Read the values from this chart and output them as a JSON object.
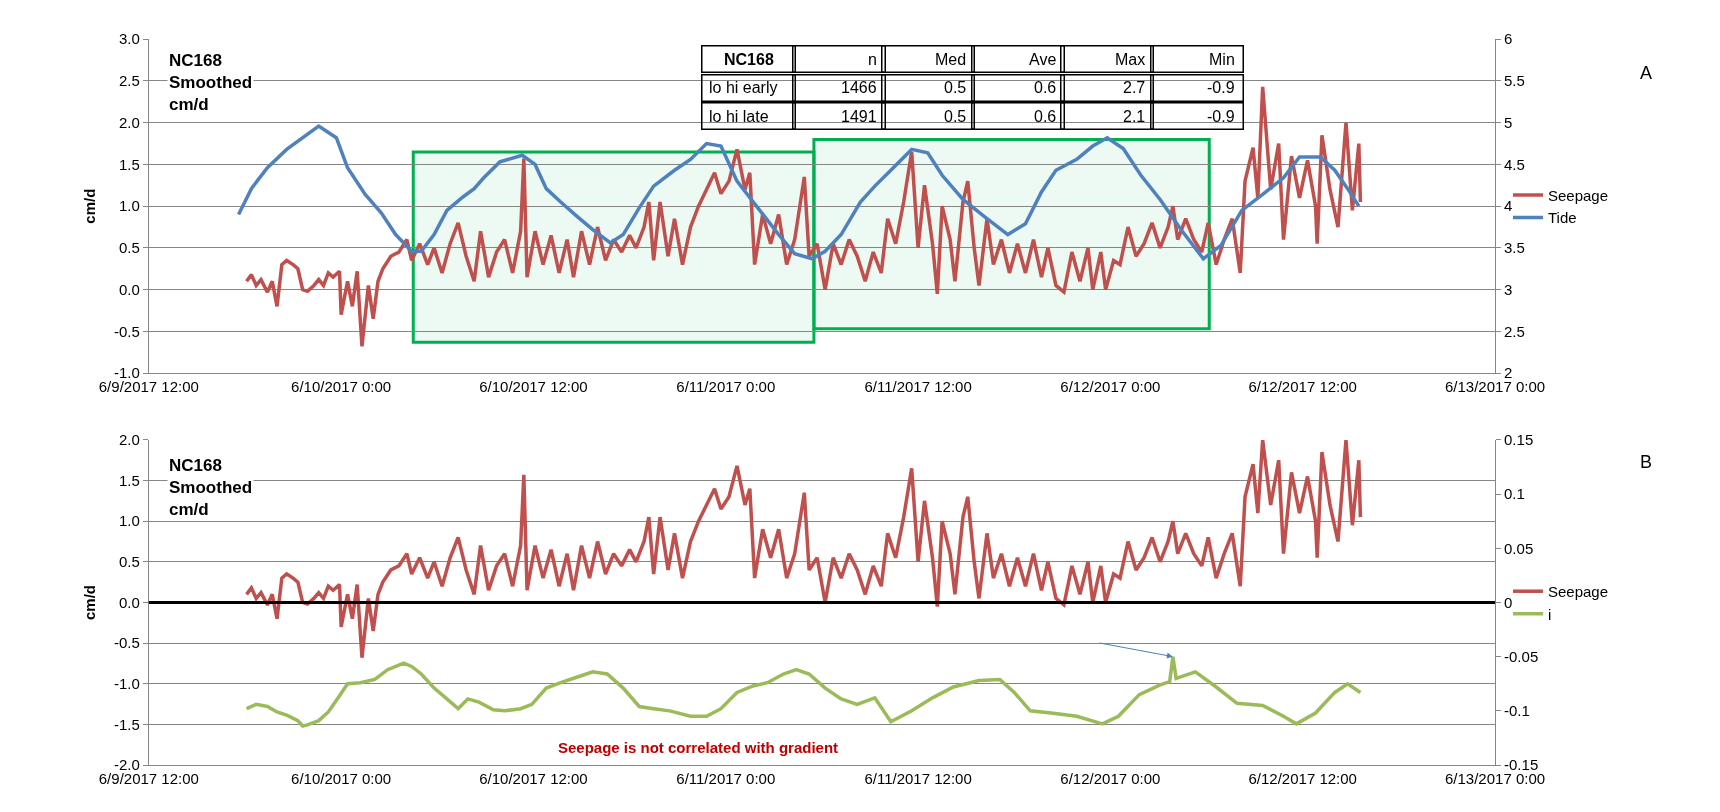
{
  "chart_data": [
    {
      "type": "line",
      "ylabel": "cm/d",
      "annotations": [
        "NC168\nSmoothed\ncm/d",
        "A",
        "NC168",
        "n",
        "Med",
        "Ave",
        "Max",
        "Min",
        "lo hi early",
        "1466",
        "0.5",
        "0.6",
        "2.7",
        "-0.9",
        "lo hi late",
        "1491",
        "0.5",
        "0.6",
        "2.1",
        "-0.9"
      ],
      "xlim": [
        "2017-06-09T12:00",
        "2017-06-13T00:00"
      ],
      "xticks": [
        {
          "value": "2017-06-09T12:00",
          "label": "6/9/2017 12:00"
        },
        {
          "value": "2017-06-10T00:00",
          "label": "6/10/2017 0:00"
        },
        {
          "value": "2017-06-10T12:00",
          "label": "6/10/2017 12:00"
        },
        {
          "value": "2017-06-11T00:00",
          "label": "6/11/2017 0:00"
        },
        {
          "value": "2017-06-11T12:00",
          "label": "6/11/2017 12:00"
        },
        {
          "value": "2017-06-12T00:00",
          "label": "6/12/2017 0:00"
        },
        {
          "value": "2017-06-12T12:00",
          "label": "6/12/2017 12:00"
        },
        {
          "value": "2017-06-13T00:00",
          "label": "6/13/2017 0:00"
        }
      ],
      "ylim": [
        -1,
        3
      ],
      "yticks": [
        {
          "value": -1,
          "label": "-1.0"
        },
        {
          "value": -0.5,
          "label": "-0.5"
        },
        {
          "value": 0,
          "label": "0.0"
        },
        {
          "value": 0.5,
          "label": "0.5"
        },
        {
          "value": 1,
          "label": "1.0"
        },
        {
          "value": 1.5,
          "label": "1.5"
        },
        {
          "value": 2,
          "label": "2.0"
        },
        {
          "value": 2.5,
          "label": "2.5"
        },
        {
          "value": 3,
          "label": "3.0"
        }
      ],
      "y2lim": [
        2,
        6
      ],
      "y2ticks": [
        2,
        2.5,
        3,
        3.5,
        4,
        4.5,
        5,
        5.5,
        6
      ],
      "grid": "y",
      "legend": "right",
      "line_style": "solid",
      "bands": [
        {
          "axis": "x",
          "from": "2017-06-10T04:30",
          "to": "2017-06-11T05:30",
          "color": "#00b050"
        },
        {
          "axis": "x",
          "from": "2017-06-11T05:30",
          "to": "2017-06-12T06:10",
          "color": "#00b050"
        }
      ],
      "series": [
        {
          "name": "Seepage",
          "color": "#c0504d",
          "x": [
            "2017-06-09T18:06",
            "2017-06-09T18:24",
            "2017-06-09T18:42",
            "2017-06-09T19:00",
            "2017-06-09T19:24",
            "2017-06-09T19:42",
            "2017-06-09T20:00",
            "2017-06-09T20:18",
            "2017-06-09T20:36",
            "2017-06-09T21:00",
            "2017-06-09T21:18",
            "2017-06-09T21:36",
            "2017-06-09T21:54",
            "2017-06-09T22:18",
            "2017-06-09T22:36",
            "2017-06-09T22:54",
            "2017-06-09T23:12",
            "2017-06-09T23:30",
            "2017-06-09T23:54",
            "2017-06-10T00:00",
            "2017-06-10T00:24",
            "2017-06-10T00:42",
            "2017-06-10T01:00",
            "2017-06-10T01:18",
            "2017-06-10T01:42",
            "2017-06-10T02:00",
            "2017-06-10T02:18",
            "2017-06-10T02:36",
            "2017-06-10T03:06",
            "2017-06-10T03:36",
            "2017-06-10T04:06",
            "2017-06-10T04:24",
            "2017-06-10T04:54",
            "2017-06-10T05:24",
            "2017-06-10T05:48",
            "2017-06-10T06:18",
            "2017-06-10T06:48",
            "2017-06-10T07:18",
            "2017-06-10T07:48",
            "2017-06-10T08:18",
            "2017-06-10T08:42",
            "2017-06-10T09:12",
            "2017-06-10T09:42",
            "2017-06-10T10:12",
            "2017-06-10T10:42",
            "2017-06-10T11:12",
            "2017-06-10T11:24",
            "2017-06-10T11:36",
            "2017-06-10T12:06",
            "2017-06-10T12:36",
            "2017-06-10T13:06",
            "2017-06-10T13:36",
            "2017-06-10T14:06",
            "2017-06-10T14:30",
            "2017-06-10T15:00",
            "2017-06-10T15:30",
            "2017-06-10T16:00",
            "2017-06-10T16:30",
            "2017-06-10T17:00",
            "2017-06-10T17:30",
            "2017-06-10T18:00",
            "2017-06-10T18:24",
            "2017-06-10T18:54",
            "2017-06-10T19:12",
            "2017-06-10T19:30",
            "2017-06-10T19:54",
            "2017-06-10T20:24",
            "2017-06-10T20:48",
            "2017-06-10T21:18",
            "2017-06-10T21:48",
            "2017-06-10T22:18",
            "2017-06-10T22:48",
            "2017-06-10T23:18",
            "2017-06-10T23:42",
            "2017-06-11T00:12",
            "2017-06-11T00:42",
            "2017-06-11T01:12",
            "2017-06-11T01:30",
            "2017-06-11T01:48",
            "2017-06-11T02:18",
            "2017-06-11T02:48",
            "2017-06-11T03:18",
            "2017-06-11T03:48",
            "2017-06-11T04:18",
            "2017-06-11T04:54",
            "2017-06-11T05:12",
            "2017-06-11T05:42",
            "2017-06-11T06:12",
            "2017-06-11T06:42",
            "2017-06-11T07:12",
            "2017-06-11T07:42",
            "2017-06-11T08:12",
            "2017-06-11T08:42",
            "2017-06-11T09:12",
            "2017-06-11T09:42",
            "2017-06-11T10:06",
            "2017-06-11T10:36",
            "2017-06-11T11:06",
            "2017-06-11T11:36",
            "2017-06-11T12:00",
            "2017-06-11T12:24",
            "2017-06-11T12:54",
            "2017-06-11T13:12",
            "2017-06-11T13:30",
            "2017-06-11T14:00",
            "2017-06-11T14:18",
            "2017-06-11T14:48",
            "2017-06-11T15:06",
            "2017-06-11T15:30",
            "2017-06-11T15:48",
            "2017-06-11T16:18",
            "2017-06-11T16:42",
            "2017-06-11T17:12",
            "2017-06-11T17:42",
            "2017-06-11T18:12",
            "2017-06-11T18:42",
            "2017-06-11T19:12",
            "2017-06-11T19:42",
            "2017-06-11T20:06",
            "2017-06-11T20:36",
            "2017-06-11T21:06",
            "2017-06-11T21:36",
            "2017-06-11T22:06",
            "2017-06-11T22:36",
            "2017-06-11T22:54",
            "2017-06-11T23:24",
            "2017-06-11T23:42",
            "2017-06-12T00:12",
            "2017-06-12T00:36",
            "2017-06-12T01:06",
            "2017-06-12T01:36",
            "2017-06-12T02:06",
            "2017-06-12T02:36",
            "2017-06-12T03:06",
            "2017-06-12T03:36",
            "2017-06-12T03:54",
            "2017-06-12T04:12",
            "2017-06-12T04:42",
            "2017-06-12T05:12",
            "2017-06-12T05:42",
            "2017-06-12T06:06",
            "2017-06-12T06:36",
            "2017-06-12T07:06",
            "2017-06-12T07:36",
            "2017-06-12T08:06",
            "2017-06-12T08:24",
            "2017-06-12T08:54",
            "2017-06-12T09:12",
            "2017-06-12T09:30",
            "2017-06-12T10:00",
            "2017-06-12T10:30",
            "2017-06-12T10:48",
            "2017-06-12T11:18",
            "2017-06-12T11:48",
            "2017-06-12T12:18",
            "2017-06-12T12:48",
            "2017-06-12T12:54",
            "2017-06-12T13:12",
            "2017-06-12T13:42",
            "2017-06-12T14:12",
            "2017-06-12T14:42",
            "2017-06-12T15:06",
            "2017-06-12T15:30",
            "2017-06-12T15:36"
          ],
          "values": [
            0.1,
            0.18,
            0.05,
            0.12,
            -0.03,
            0.1,
            -0.2,
            0.3,
            0.35,
            0.3,
            0.25,
            0.0,
            -0.02,
            0.05,
            0.12,
            0.05,
            0.2,
            0.15,
            0.22,
            -0.3,
            0.1,
            -0.2,
            0.22,
            -0.68,
            0.05,
            -0.35,
            0.1,
            0.25,
            0.4,
            0.45,
            0.6,
            0.35,
            0.55,
            0.3,
            0.5,
            0.2,
            0.55,
            0.8,
            0.4,
            0.1,
            0.7,
            0.15,
            0.45,
            0.6,
            0.2,
            0.7,
            1.57,
            0.15,
            0.7,
            0.3,
            0.65,
            0.2,
            0.6,
            0.15,
            0.7,
            0.3,
            0.75,
            0.35,
            0.6,
            0.45,
            0.65,
            0.5,
            0.75,
            1.05,
            0.35,
            1.05,
            0.4,
            0.85,
            0.3,
            0.75,
            1.0,
            1.2,
            1.4,
            1.15,
            1.3,
            1.68,
            1.2,
            1.4,
            0.3,
            0.9,
            0.55,
            0.9,
            0.3,
            0.6,
            1.35,
            0.4,
            0.55,
            0.0,
            0.55,
            0.3,
            0.6,
            0.4,
            0.1,
            0.45,
            0.2,
            0.85,
            0.55,
            1.05,
            1.65,
            0.5,
            1.25,
            0.55,
            -0.05,
            1.0,
            0.6,
            0.1,
            1.05,
            1.3,
            0.5,
            0.05,
            0.85,
            0.3,
            0.6,
            0.2,
            0.55,
            0.2,
            0.6,
            0.15,
            0.5,
            0.05,
            -0.03,
            0.45,
            0.1,
            0.5,
            0.0,
            0.45,
            0.0,
            0.35,
            0.3,
            0.75,
            0.4,
            0.55,
            0.8,
            0.5,
            0.75,
            1.0,
            0.6,
            0.85,
            0.6,
            0.45,
            0.8,
            0.3,
            0.6,
            0.85,
            0.2,
            1.3,
            1.7,
            1.1,
            2.43,
            1.2,
            1.75,
            0.6,
            1.6,
            1.1,
            1.55,
            1.0,
            0.55,
            1.85,
            1.2,
            0.75,
            2.0,
            0.95,
            1.75,
            1.05
          ]
        },
        {
          "name": "Tide",
          "color": "#4f81bd",
          "axis": "y2",
          "x": [
            "2017-06-09T17:36",
            "2017-06-09T18:24",
            "2017-06-09T19:24",
            "2017-06-09T20:36",
            "2017-06-09T22:36",
            "2017-06-09T23:42",
            "2017-06-10T00:24",
            "2017-06-10T01:30",
            "2017-06-10T02:30",
            "2017-06-10T03:24",
            "2017-06-10T04:24",
            "2017-06-10T05:00",
            "2017-06-10T05:48",
            "2017-06-10T06:36",
            "2017-06-10T07:36",
            "2017-06-10T08:18",
            "2017-06-10T08:54",
            "2017-06-10T09:54",
            "2017-06-10T11:18",
            "2017-06-10T12:06",
            "2017-06-10T12:48",
            "2017-06-10T13:42",
            "2017-06-10T14:42",
            "2017-06-10T15:42",
            "2017-06-10T16:48",
            "2017-06-10T17:36",
            "2017-06-10T18:36",
            "2017-06-10T19:30",
            "2017-06-10T20:48",
            "2017-06-10T21:48",
            "2017-06-10T22:48",
            "2017-06-10T23:42",
            "2017-06-11T00:42",
            "2017-06-11T02:00",
            "2017-06-11T03:18",
            "2017-06-11T04:18",
            "2017-06-11T05:24",
            "2017-06-11T06:12",
            "2017-06-11T07:12",
            "2017-06-11T08:24",
            "2017-06-11T09:18",
            "2017-06-11T10:18",
            "2017-06-11T11:36",
            "2017-06-11T12:36",
            "2017-06-11T13:30",
            "2017-06-11T14:48",
            "2017-06-11T16:06",
            "2017-06-11T17:36",
            "2017-06-11T18:42",
            "2017-06-11T19:42",
            "2017-06-11T20:36",
            "2017-06-11T21:54",
            "2017-06-11T22:54",
            "2017-06-11T23:48",
            "2017-06-12T00:48",
            "2017-06-12T01:54",
            "2017-06-12T03:06",
            "2017-06-12T04:24",
            "2017-06-12T05:48",
            "2017-06-12T06:54",
            "2017-06-12T08:12",
            "2017-06-12T09:30",
            "2017-06-12T10:48",
            "2017-06-12T11:48",
            "2017-06-12T13:06",
            "2017-06-12T14:00",
            "2017-06-12T14:48",
            "2017-06-12T15:30"
          ],
          "values": [
            3.9,
            4.21,
            4.46,
            4.68,
            4.96,
            4.82,
            4.46,
            4.14,
            3.92,
            3.66,
            3.46,
            3.46,
            3.66,
            3.95,
            4.11,
            4.21,
            4.34,
            4.53,
            4.61,
            4.5,
            4.21,
            4.05,
            3.88,
            3.72,
            3.56,
            3.66,
            3.98,
            4.24,
            4.43,
            4.56,
            4.75,
            4.72,
            4.3,
            3.98,
            3.66,
            3.43,
            3.37,
            3.46,
            3.66,
            4.05,
            4.24,
            4.43,
            4.68,
            4.64,
            4.37,
            4.08,
            3.88,
            3.66,
            3.79,
            4.17,
            4.43,
            4.56,
            4.72,
            4.82,
            4.69,
            4.37,
            4.08,
            3.72,
            3.37,
            3.53,
            3.95,
            4.14,
            4.34,
            4.59,
            4.59,
            4.43,
            4.21,
            4.0
          ]
        }
      ]
    },
    {
      "type": "line",
      "ylabel": "cm/d",
      "annotations": [
        "NC168\nSmoothed\ncm/d",
        "B",
        "Seepage is not correlated with gradient"
      ],
      "xlim": [
        "2017-06-09T12:00",
        "2017-06-13T00:00"
      ],
      "xticks": [
        {
          "value": "2017-06-09T12:00",
          "label": "6/9/2017 12:00"
        },
        {
          "value": "2017-06-10T00:00",
          "label": "6/10/2017 0:00"
        },
        {
          "value": "2017-06-10T12:00",
          "label": "6/10/2017 12:00"
        },
        {
          "value": "2017-06-11T00:00",
          "label": "6/11/2017 0:00"
        },
        {
          "value": "2017-06-11T12:00",
          "label": "6/11/2017 12:00"
        },
        {
          "value": "2017-06-12T00:00",
          "label": "6/12/2017 0:00"
        },
        {
          "value": "2017-06-12T12:00",
          "label": "6/12/2017 12:00"
        },
        {
          "value": "2017-06-13T00:00",
          "label": "6/13/2017 0:00"
        }
      ],
      "ylim": [
        -2,
        2
      ],
      "yticks": [
        {
          "value": -2,
          "label": "-2.0"
        },
        {
          "value": -1.5,
          "label": "-1.5"
        },
        {
          "value": -1,
          "label": "-1.0"
        },
        {
          "value": -0.5,
          "label": "-0.5"
        },
        {
          "value": 0,
          "label": "0.0"
        },
        {
          "value": 0.5,
          "label": "0.5"
        },
        {
          "value": 1,
          "label": "1.0"
        },
        {
          "value": 1.5,
          "label": "1.5"
        },
        {
          "value": 2,
          "label": "2.0"
        }
      ],
      "y2lim": [
        -0.15,
        0.15
      ],
      "y2ticks": [
        -0.15,
        -0.1,
        -0.05,
        0,
        0.05,
        0.1,
        0.15
      ],
      "grid": "y",
      "legend": "right",
      "line_style": "solid",
      "ref_lines": [
        {
          "axis": "y",
          "value": 0,
          "color": "#000000"
        }
      ],
      "series": [
        {
          "name": "Seepage",
          "color": "#c0504d",
          "x": [
            "2017-06-09T18:06",
            "2017-06-09T18:24",
            "2017-06-09T18:42",
            "2017-06-09T19:00",
            "2017-06-09T19:24",
            "2017-06-09T19:42",
            "2017-06-09T20:00",
            "2017-06-09T20:18",
            "2017-06-09T20:36",
            "2017-06-09T21:00",
            "2017-06-09T21:18",
            "2017-06-09T21:36",
            "2017-06-09T21:54",
            "2017-06-09T22:18",
            "2017-06-09T22:36",
            "2017-06-09T22:54",
            "2017-06-09T23:12",
            "2017-06-09T23:30",
            "2017-06-09T23:54",
            "2017-06-10T00:00",
            "2017-06-10T00:24",
            "2017-06-10T00:42",
            "2017-06-10T01:00",
            "2017-06-10T01:18",
            "2017-06-10T01:42",
            "2017-06-10T02:00",
            "2017-06-10T02:18",
            "2017-06-10T02:36",
            "2017-06-10T03:06",
            "2017-06-10T03:36",
            "2017-06-10T04:06",
            "2017-06-10T04:24",
            "2017-06-10T04:54",
            "2017-06-10T05:24",
            "2017-06-10T05:48",
            "2017-06-10T06:18",
            "2017-06-10T06:48",
            "2017-06-10T07:18",
            "2017-06-10T07:48",
            "2017-06-10T08:18",
            "2017-06-10T08:42",
            "2017-06-10T09:12",
            "2017-06-10T09:42",
            "2017-06-10T10:12",
            "2017-06-10T10:42",
            "2017-06-10T11:12",
            "2017-06-10T11:24",
            "2017-06-10T11:36",
            "2017-06-10T12:06",
            "2017-06-10T12:36",
            "2017-06-10T13:06",
            "2017-06-10T13:36",
            "2017-06-10T14:06",
            "2017-06-10T14:30",
            "2017-06-10T15:00",
            "2017-06-10T15:30",
            "2017-06-10T16:00",
            "2017-06-10T16:30",
            "2017-06-10T17:00",
            "2017-06-10T17:30",
            "2017-06-10T18:00",
            "2017-06-10T18:24",
            "2017-06-10T18:54",
            "2017-06-10T19:12",
            "2017-06-10T19:30",
            "2017-06-10T19:54",
            "2017-06-10T20:24",
            "2017-06-10T20:48",
            "2017-06-10T21:18",
            "2017-06-10T21:48",
            "2017-06-10T22:18",
            "2017-06-10T22:48",
            "2017-06-10T23:18",
            "2017-06-10T23:42",
            "2017-06-11T00:12",
            "2017-06-11T00:42",
            "2017-06-11T01:12",
            "2017-06-11T01:30",
            "2017-06-11T01:48",
            "2017-06-11T02:18",
            "2017-06-11T02:48",
            "2017-06-11T03:18",
            "2017-06-11T03:48",
            "2017-06-11T04:18",
            "2017-06-11T04:54",
            "2017-06-11T05:12",
            "2017-06-11T05:42",
            "2017-06-11T06:12",
            "2017-06-11T06:42",
            "2017-06-11T07:12",
            "2017-06-11T07:42",
            "2017-06-11T08:12",
            "2017-06-11T08:42",
            "2017-06-11T09:12",
            "2017-06-11T09:42",
            "2017-06-11T10:06",
            "2017-06-11T10:36",
            "2017-06-11T11:06",
            "2017-06-11T11:36",
            "2017-06-11T12:00",
            "2017-06-11T12:24",
            "2017-06-11T12:54",
            "2017-06-11T13:12",
            "2017-06-11T13:30",
            "2017-06-11T14:00",
            "2017-06-11T14:18",
            "2017-06-11T14:48",
            "2017-06-11T15:06",
            "2017-06-11T15:30",
            "2017-06-11T15:48",
            "2017-06-11T16:18",
            "2017-06-11T16:42",
            "2017-06-11T17:12",
            "2017-06-11T17:42",
            "2017-06-11T18:12",
            "2017-06-11T18:42",
            "2017-06-11T19:12",
            "2017-06-11T19:42",
            "2017-06-11T20:06",
            "2017-06-11T20:36",
            "2017-06-11T21:06",
            "2017-06-11T21:36",
            "2017-06-11T22:06",
            "2017-06-11T22:36",
            "2017-06-11T22:54",
            "2017-06-11T23:24",
            "2017-06-11T23:42",
            "2017-06-12T00:12",
            "2017-06-12T00:36",
            "2017-06-12T01:06",
            "2017-06-12T01:36",
            "2017-06-12T02:06",
            "2017-06-12T02:36",
            "2017-06-12T03:06",
            "2017-06-12T03:36",
            "2017-06-12T03:54",
            "2017-06-12T04:12",
            "2017-06-12T04:42",
            "2017-06-12T05:12",
            "2017-06-12T05:42",
            "2017-06-12T06:06",
            "2017-06-12T06:36",
            "2017-06-12T07:06",
            "2017-06-12T07:36",
            "2017-06-12T08:06",
            "2017-06-12T08:24",
            "2017-06-12T08:54",
            "2017-06-12T09:12",
            "2017-06-12T09:30",
            "2017-06-12T10:00",
            "2017-06-12T10:30",
            "2017-06-12T10:48",
            "2017-06-12T11:18",
            "2017-06-12T11:48",
            "2017-06-12T12:18",
            "2017-06-12T12:48",
            "2017-06-12T12:54",
            "2017-06-12T13:12",
            "2017-06-12T13:42",
            "2017-06-12T14:12",
            "2017-06-12T14:42",
            "2017-06-12T15:06",
            "2017-06-12T15:30",
            "2017-06-12T15:36"
          ],
          "values": [
            0.1,
            0.18,
            0.05,
            0.12,
            -0.03,
            0.1,
            -0.2,
            0.3,
            0.35,
            0.3,
            0.25,
            0.0,
            -0.02,
            0.05,
            0.12,
            0.05,
            0.2,
            0.15,
            0.22,
            -0.3,
            0.1,
            -0.2,
            0.22,
            -0.68,
            0.05,
            -0.35,
            0.1,
            0.25,
            0.4,
            0.45,
            0.6,
            0.35,
            0.55,
            0.3,
            0.5,
            0.2,
            0.55,
            0.8,
            0.4,
            0.1,
            0.7,
            0.15,
            0.45,
            0.6,
            0.2,
            0.7,
            1.57,
            0.15,
            0.7,
            0.3,
            0.65,
            0.2,
            0.6,
            0.15,
            0.7,
            0.3,
            0.75,
            0.35,
            0.6,
            0.45,
            0.65,
            0.5,
            0.75,
            1.05,
            0.35,
            1.05,
            0.4,
            0.85,
            0.3,
            0.75,
            1.0,
            1.2,
            1.4,
            1.15,
            1.3,
            1.68,
            1.2,
            1.4,
            0.3,
            0.9,
            0.55,
            0.9,
            0.3,
            0.6,
            1.35,
            0.4,
            0.55,
            0.0,
            0.55,
            0.3,
            0.6,
            0.4,
            0.1,
            0.45,
            0.2,
            0.85,
            0.55,
            1.05,
            1.65,
            0.5,
            1.25,
            0.55,
            -0.05,
            1.0,
            0.6,
            0.1,
            1.05,
            1.3,
            0.5,
            0.05,
            0.85,
            0.3,
            0.6,
            0.2,
            0.55,
            0.2,
            0.6,
            0.15,
            0.5,
            0.05,
            -0.03,
            0.45,
            0.1,
            0.5,
            0.0,
            0.45,
            0.0,
            0.35,
            0.3,
            0.75,
            0.4,
            0.55,
            0.8,
            0.5,
            0.75,
            1.0,
            0.6,
            0.85,
            0.6,
            0.45,
            0.8,
            0.3,
            0.6,
            0.85,
            0.2,
            1.3,
            1.7,
            1.1,
            2.0,
            1.2,
            1.75,
            0.6,
            1.6,
            1.1,
            1.55,
            1.0,
            0.55,
            1.85,
            1.2,
            0.75,
            2.0,
            0.95,
            1.75,
            1.05
          ]
        },
        {
          "name": "i",
          "color": "#9bbb59",
          "axis": "y2",
          "x": [
            "2017-06-09T18:06",
            "2017-06-09T18:42",
            "2017-06-09T19:24",
            "2017-06-09T20:00",
            "2017-06-09T20:36",
            "2017-06-09T21:18",
            "2017-06-09T21:36",
            "2017-06-09T21:54",
            "2017-06-09T22:36",
            "2017-06-09T23:12",
            "2017-06-09T23:54",
            "2017-06-10T00:24",
            "2017-06-10T01:12",
            "2017-06-10T02:06",
            "2017-06-10T02:54",
            "2017-06-10T03:54",
            "2017-06-10T04:24",
            "2017-06-10T05:00",
            "2017-06-10T05:48",
            "2017-06-10T06:36",
            "2017-06-10T07:18",
            "2017-06-10T07:54",
            "2017-06-10T08:36",
            "2017-06-10T09:30",
            "2017-06-10T10:12",
            "2017-06-10T11:12",
            "2017-06-10T11:54",
            "2017-06-10T12:48",
            "2017-06-10T13:42",
            "2017-06-10T14:42",
            "2017-06-10T15:42",
            "2017-06-10T16:36",
            "2017-06-10T17:36",
            "2017-06-10T18:36",
            "2017-06-10T19:30",
            "2017-06-10T20:30",
            "2017-06-10T21:48",
            "2017-06-10T22:48",
            "2017-06-10T23:42",
            "2017-06-11T00:42",
            "2017-06-11T01:42",
            "2017-06-11T02:36",
            "2017-06-11T03:36",
            "2017-06-11T04:24",
            "2017-06-11T05:12",
            "2017-06-11T06:12",
            "2017-06-11T07:12",
            "2017-06-11T08:12",
            "2017-06-11T09:18",
            "2017-06-11T10:18",
            "2017-06-11T11:36",
            "2017-06-11T12:54",
            "2017-06-11T14:12",
            "2017-06-11T15:48",
            "2017-06-11T17:06",
            "2017-06-11T18:00",
            "2017-06-11T19:00",
            "2017-06-11T20:18",
            "2017-06-11T21:54",
            "2017-06-11T23:30",
            "2017-06-12T00:30",
            "2017-06-12T01:48",
            "2017-06-12T03:06",
            "2017-06-12T03:42",
            "2017-06-12T03:54",
            "2017-06-12T04:06",
            "2017-06-12T05:18",
            "2017-06-12T06:36",
            "2017-06-12T07:54",
            "2017-06-12T09:30",
            "2017-06-12T10:48",
            "2017-06-12T11:36",
            "2017-06-12T12:48",
            "2017-06-12T14:00",
            "2017-06-12T14:48",
            "2017-06-12T15:36"
          ],
          "values": [
            -0.098,
            -0.094,
            -0.096,
            -0.101,
            -0.104,
            -0.109,
            -0.114,
            -0.113,
            -0.109,
            -0.101,
            -0.086,
            -0.075,
            -0.074,
            -0.071,
            -0.062,
            -0.056,
            -0.059,
            -0.066,
            -0.079,
            -0.089,
            -0.098,
            -0.089,
            -0.092,
            -0.099,
            -0.1,
            -0.098,
            -0.094,
            -0.079,
            -0.074,
            -0.069,
            -0.064,
            -0.066,
            -0.079,
            -0.096,
            -0.098,
            -0.1,
            -0.105,
            -0.105,
            -0.098,
            -0.083,
            -0.077,
            -0.074,
            -0.066,
            -0.062,
            -0.066,
            -0.079,
            -0.089,
            -0.094,
            -0.088,
            -0.11,
            -0.1,
            -0.088,
            -0.078,
            -0.072,
            -0.071,
            -0.083,
            -0.1,
            -0.102,
            -0.105,
            -0.112,
            -0.105,
            -0.085,
            -0.076,
            -0.073,
            -0.05,
            -0.07,
            -0.064,
            -0.078,
            -0.093,
            -0.095,
            -0.105,
            -0.112,
            -0.102,
            -0.083,
            -0.075,
            -0.083
          ]
        }
      ]
    }
  ]
}
